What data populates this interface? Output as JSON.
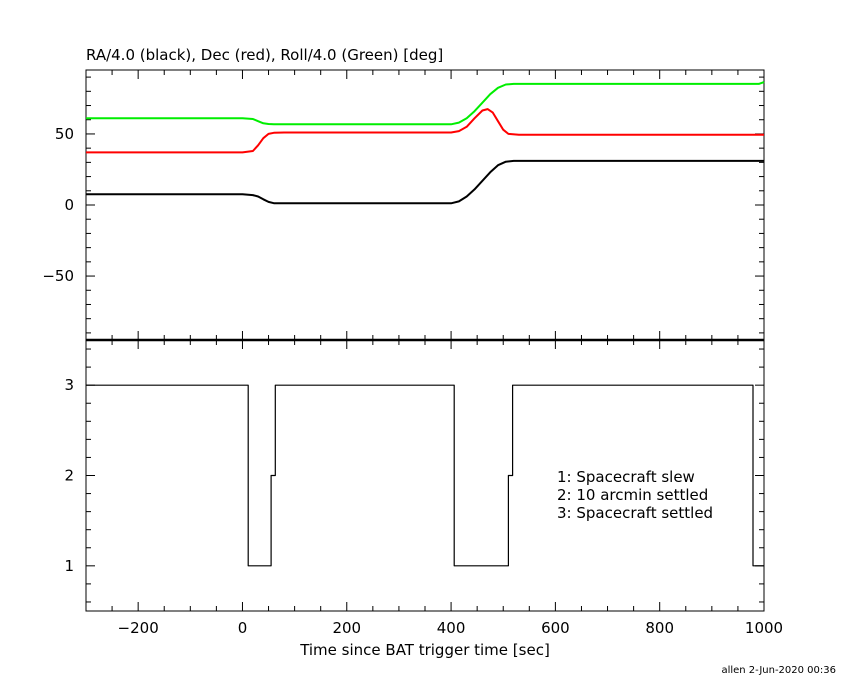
{
  "footer": "allen  2-Jun-2020 00:36",
  "chart_data": [
    {
      "type": "line",
      "title": "RA/4.0 (black), Dec (red), Roll/4.0 (Green) [deg]",
      "xlabel": "",
      "ylabel": "",
      "xlim": [
        -300,
        1000
      ],
      "ylim": [
        -95,
        95
      ],
      "yticks": [
        -50,
        0,
        50
      ],
      "grid": false,
      "series": [
        {
          "color": "#000000",
          "x": [
            -300,
            0,
            20,
            30,
            40,
            50,
            60,
            80,
            200,
            400,
            415,
            430,
            445,
            460,
            475,
            490,
            505,
            520,
            700,
            1000
          ],
          "y": [
            7.5,
            7.5,
            7,
            6,
            4,
            2.2,
            1.3,
            1.2,
            1.2,
            1.2,
            2.5,
            6,
            11,
            17,
            23,
            28,
            30.5,
            31,
            31,
            31
          ]
        },
        {
          "color": "#ff0000",
          "x": [
            -300,
            0,
            20,
            30,
            40,
            50,
            60,
            80,
            200,
            400,
            415,
            430,
            445,
            460,
            470,
            480,
            490,
            500,
            510,
            530,
            700,
            1000
          ],
          "y": [
            37,
            37,
            38,
            42,
            47,
            50,
            50.8,
            51,
            51,
            51,
            52,
            55,
            61,
            66.5,
            67.5,
            65,
            59,
            53,
            50,
            49.5,
            49.5,
            49.5
          ]
        },
        {
          "color": "#00ee00",
          "x": [
            -300,
            0,
            20,
            30,
            40,
            50,
            60,
            80,
            200,
            400,
            415,
            430,
            445,
            460,
            475,
            490,
            505,
            520,
            700,
            990,
            1000
          ],
          "y": [
            61,
            61,
            60.5,
            59,
            57.5,
            57,
            56.8,
            56.8,
            56.8,
            56.8,
            58,
            61,
            66,
            72,
            78,
            82.5,
            84.8,
            85.2,
            85.2,
            85.2,
            86.5
          ]
        }
      ]
    },
    {
      "type": "line",
      "title": "",
      "xlabel": "Time since BAT trigger time [sec]",
      "ylabel": "",
      "xlim": [
        -300,
        1000
      ],
      "ylim": [
        0.5,
        3.5
      ],
      "xticks": [
        -200,
        0,
        200,
        400,
        600,
        800,
        1000
      ],
      "yticks": [
        1,
        2,
        3
      ],
      "grid": false,
      "legend": [
        "1: Spacecraft slew",
        "2: 10 arcmin settled",
        "3: Spacecraft settled"
      ],
      "legend_position": "right",
      "series": [
        {
          "color": "#000000",
          "step": true,
          "x": [
            -300,
            11,
            11,
            55,
            55,
            63,
            63,
            406,
            406,
            510,
            510,
            518,
            518,
            979,
            979,
            1000
          ],
          "y": [
            3,
            3,
            1,
            1,
            2,
            2,
            3,
            3,
            1,
            1,
            2,
            2,
            3,
            3,
            1,
            1
          ]
        }
      ]
    }
  ]
}
